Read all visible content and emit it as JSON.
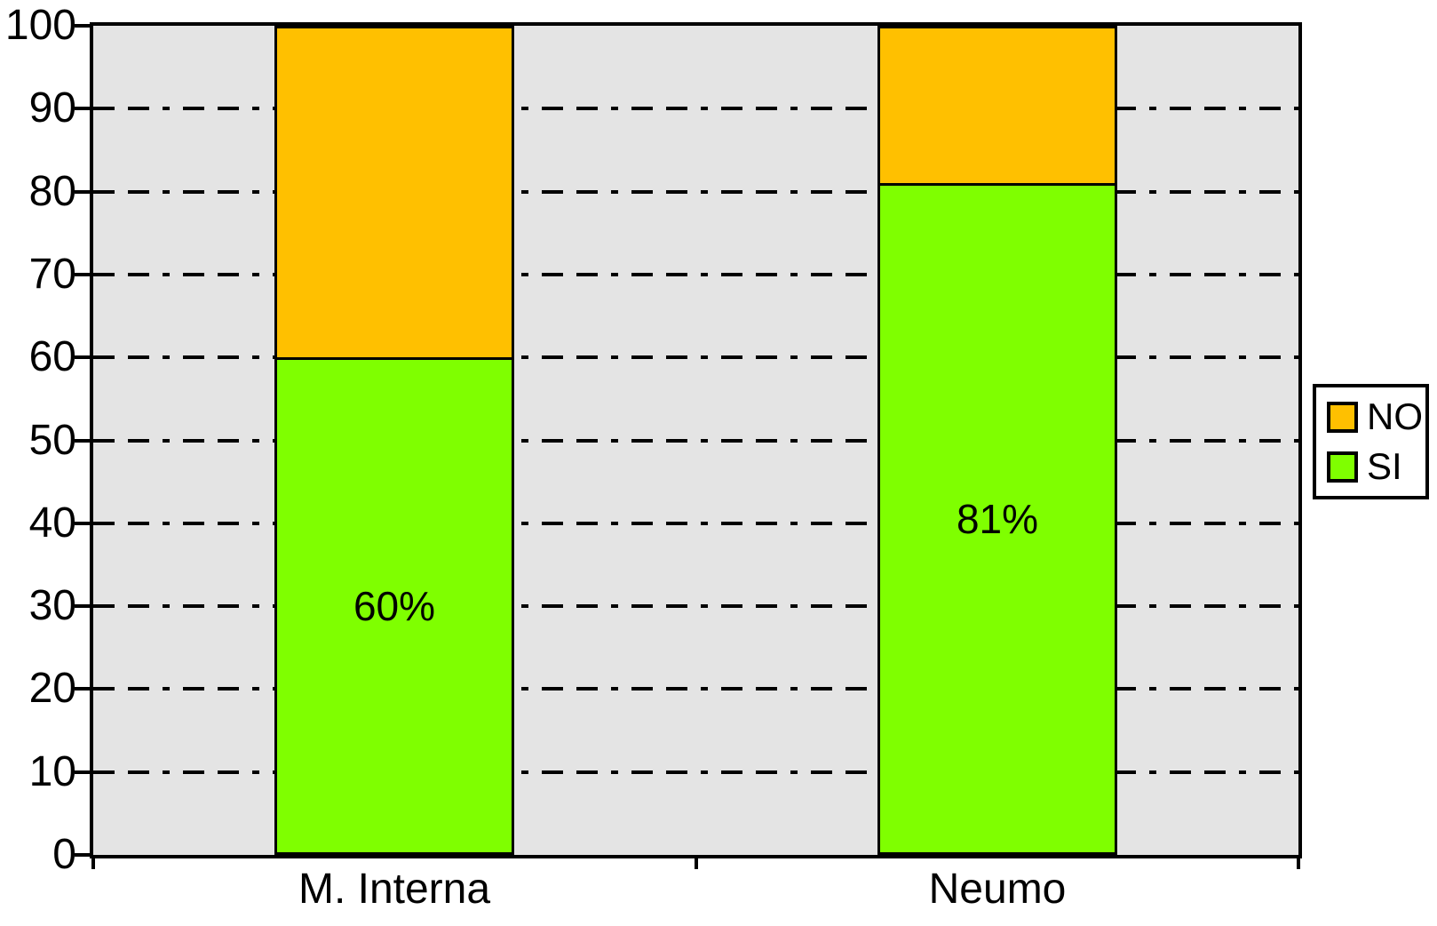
{
  "chart_data": {
    "type": "bar",
    "stacked": true,
    "percent_scale": true,
    "title": "",
    "xlabel": "",
    "ylabel": "",
    "categories": [
      "M. Interna",
      "Neumo"
    ],
    "series": [
      {
        "name": "SI",
        "color": "#7FFF00",
        "values": [
          60,
          81
        ],
        "data_labels": [
          "60%",
          "81%"
        ]
      },
      {
        "name": "NO",
        "color": "#FFC000",
        "values": [
          40,
          19
        ],
        "data_labels": [
          "",
          ""
        ]
      }
    ],
    "ylim": [
      0,
      100
    ],
    "yticks": [
      0,
      10,
      20,
      30,
      40,
      50,
      60,
      70,
      80,
      90,
      100
    ],
    "grid": {
      "horizontal": true,
      "style": "dash-dot",
      "color": "#000000"
    },
    "plot_background": "#E4E4E4",
    "legend": {
      "position": "right",
      "entries": [
        {
          "label": "NO",
          "color": "#FFC000"
        },
        {
          "label": "SI",
          "color": "#7FFF00"
        }
      ]
    }
  }
}
